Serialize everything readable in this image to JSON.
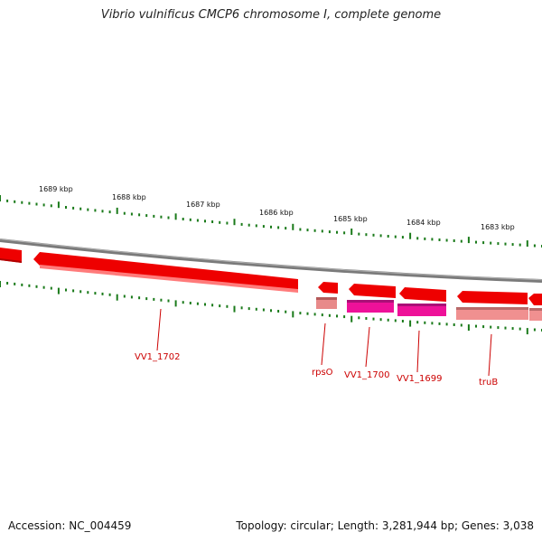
{
  "title": "Vibrio vulnificus CMCP6 chromosome I, complete genome",
  "footer": {
    "accession": "Accession: NC_004459",
    "summary": "Topology: circular; Length: 3,281,944 bp; Genes: 3,038"
  },
  "scale_labels": [
    "1689 kbp",
    "1688 kbp",
    "1687 kbp",
    "1686 kbp",
    "1685 kbp",
    "1684 kbp",
    "1683 kbp"
  ],
  "genes": [
    {
      "name": "VV1_1702"
    },
    {
      "name": "rpsO"
    },
    {
      "name": "VV1_1700"
    },
    {
      "name": "VV1_1699"
    },
    {
      "name": "truB"
    }
  ],
  "colors": {
    "gene": "#ee0000",
    "gene_light": "#ff7070",
    "cds_magenta": "#ee1199",
    "cds_pink": "#f09090",
    "cds_rpso": "#e88a8a",
    "backbone": "#808080",
    "tick": "#1a7a1a",
    "label": "#cc0000"
  }
}
